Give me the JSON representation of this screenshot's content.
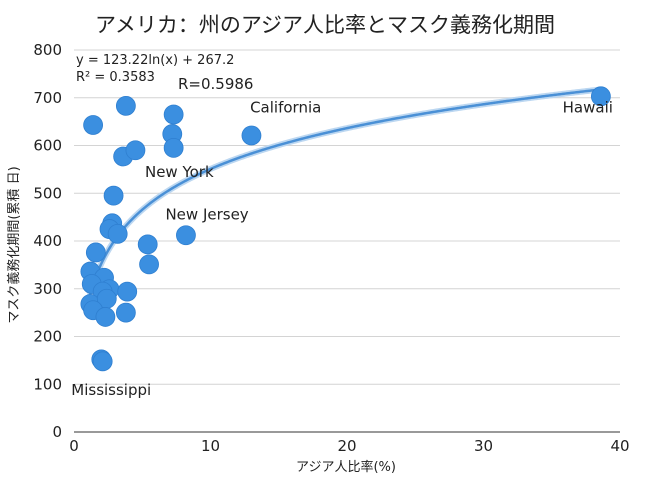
{
  "chart_data": {
    "type": "scatter",
    "title": "アメリカ：州のアジア人比率とマスク義務化期間",
    "xlabel": "アジア人比率(%)",
    "ylabel": "マスク義務化期間(累積 日)",
    "xlim": [
      0,
      40
    ],
    "ylim": [
      0,
      800
    ],
    "x_ticks": [
      0,
      10,
      20,
      30,
      40
    ],
    "y_ticks": [
      0,
      100,
      200,
      300,
      400,
      500,
      600,
      700,
      800
    ],
    "grid": true,
    "marker_color": "#3b8fe0",
    "trendline": {
      "type": "logarithmic",
      "a": 123.22,
      "b": 267.2,
      "color": "#4a90d6",
      "equation_text": "y = 123.22ln(x) + 267.2",
      "r2_text": "R² = 0.3583",
      "r_text": "R=0.5986"
    },
    "points": [
      {
        "x": 1.4,
        "y": 643
      },
      {
        "x": 3.8,
        "y": 683
      },
      {
        "x": 3.6,
        "y": 577
      },
      {
        "x": 4.5,
        "y": 590
      },
      {
        "x": 7.3,
        "y": 665
      },
      {
        "x": 7.2,
        "y": 624
      },
      {
        "x": 7.3,
        "y": 595
      },
      {
        "x": 13.0,
        "y": 621
      },
      {
        "x": 38.6,
        "y": 703
      },
      {
        "x": 2.9,
        "y": 495
      },
      {
        "x": 2.8,
        "y": 437
      },
      {
        "x": 2.6,
        "y": 425
      },
      {
        "x": 3.2,
        "y": 415
      },
      {
        "x": 5.4,
        "y": 393
      },
      {
        "x": 5.5,
        "y": 351
      },
      {
        "x": 8.2,
        "y": 412
      },
      {
        "x": 1.6,
        "y": 376
      },
      {
        "x": 1.2,
        "y": 336
      },
      {
        "x": 2.2,
        "y": 323
      },
      {
        "x": 1.3,
        "y": 310
      },
      {
        "x": 2.6,
        "y": 299
      },
      {
        "x": 2.1,
        "y": 294
      },
      {
        "x": 3.9,
        "y": 294
      },
      {
        "x": 1.2,
        "y": 268
      },
      {
        "x": 2.4,
        "y": 279
      },
      {
        "x": 1.4,
        "y": 255
      },
      {
        "x": 2.3,
        "y": 241
      },
      {
        "x": 3.8,
        "y": 250
      },
      {
        "x": 2.0,
        "y": 152
      },
      {
        "x": 2.1,
        "y": 148
      }
    ],
    "annotations": [
      {
        "text": "California",
        "x": 12.9,
        "y": 680
      },
      {
        "text": "Hawaii",
        "x": 35.8,
        "y": 680
      },
      {
        "text": "New York",
        "x": 5.2,
        "y": 544
      },
      {
        "text": "New Jersey",
        "x": 6.7,
        "y": 455
      },
      {
        "text": "Mississippi",
        "x": -0.2,
        "y": 88
      }
    ]
  }
}
